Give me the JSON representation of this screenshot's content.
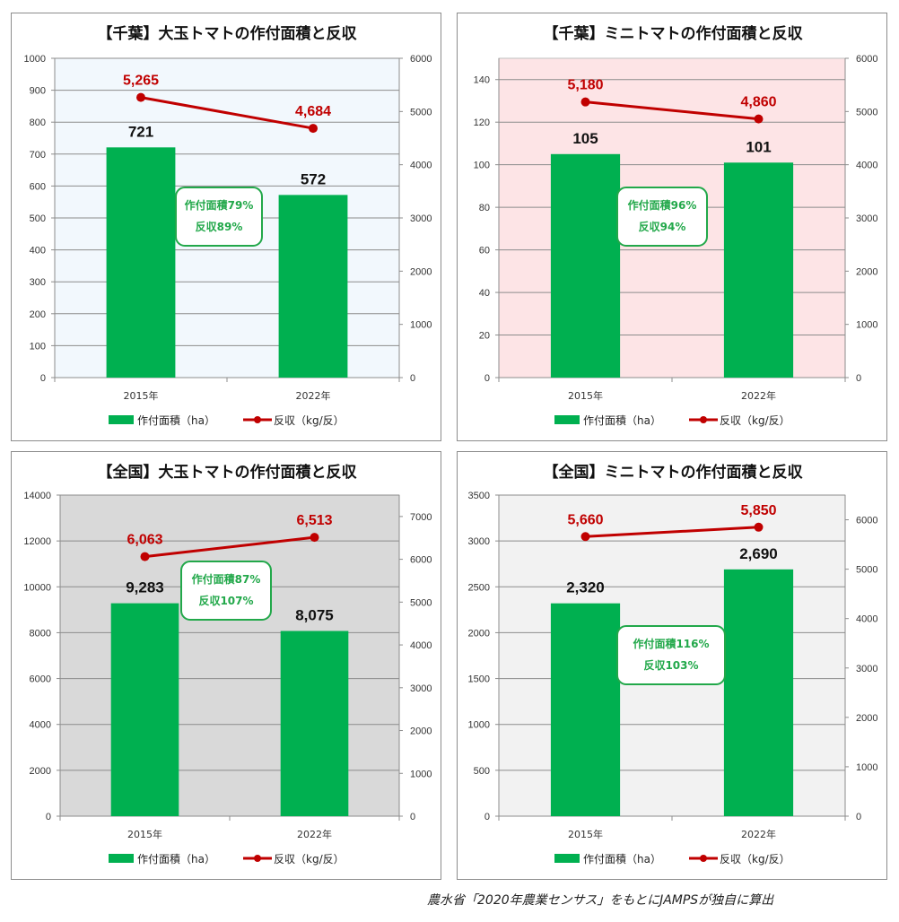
{
  "colors": {
    "bar": "#00b050",
    "line": "#c00000",
    "annotation": "#22a84a"
  },
  "legend": {
    "area_label": "作付面積（ha）",
    "yield_label": "反収（kg/反）"
  },
  "source_note": "農水省「2020年農業センサス」をもとにJAMPSが独自に算出",
  "chart_data": [
    {
      "type": "bar",
      "title": "【千葉】大玉トマトの作付面積と反収",
      "background": "#f2f8fd",
      "categories": [
        "2015年",
        "2022年"
      ],
      "series": [
        {
          "name": "作付面積（ha）",
          "type": "bar",
          "axis": "left",
          "values": [
            721,
            572
          ],
          "labels": [
            "721",
            "572"
          ]
        },
        {
          "name": "反収（kg/反）",
          "type": "line",
          "axis": "right",
          "values": [
            5265,
            4684
          ],
          "labels": [
            "5,265",
            "4,684"
          ]
        }
      ],
      "y_left": {
        "min": 0,
        "max": 1000,
        "step": 100,
        "ticks": [
          "0",
          "100",
          "200",
          "300",
          "400",
          "500",
          "600",
          "700",
          "800",
          "900",
          "1000"
        ]
      },
      "y_right": {
        "min": 0,
        "max": 6000,
        "step": 1000,
        "ticks": [
          "0",
          "1000",
          "2000",
          "3000",
          "4000",
          "5000",
          "6000"
        ]
      },
      "annotation": {
        "lines": [
          "作付面積79%",
          "反収89%"
        ]
      }
    },
    {
      "type": "bar",
      "title": "【千葉】ミニトマトの作付面積と反収",
      "background": "#fde4e6",
      "categories": [
        "2015年",
        "2022年"
      ],
      "series": [
        {
          "name": "作付面積（ha）",
          "type": "bar",
          "axis": "left",
          "values": [
            105,
            101
          ],
          "labels": [
            "105",
            "101"
          ]
        },
        {
          "name": "反収（kg/反）",
          "type": "line",
          "axis": "right",
          "values": [
            5180,
            4860
          ],
          "labels": [
            "5,180",
            "4,860"
          ]
        }
      ],
      "y_left": {
        "min": 0,
        "max": 150,
        "step": 20,
        "ticks": [
          "0",
          "20",
          "40",
          "60",
          "80",
          "100",
          "120",
          "140"
        ]
      },
      "y_right": {
        "min": 0,
        "max": 6000,
        "step": 1000,
        "ticks": [
          "0",
          "1000",
          "2000",
          "3000",
          "4000",
          "5000",
          "6000"
        ]
      },
      "annotation": {
        "lines": [
          "作付面積96%",
          "反収94%"
        ]
      }
    },
    {
      "type": "bar",
      "title": "【全国】大玉トマトの作付面積と反収",
      "background": "#d9d9d9",
      "categories": [
        "2015年",
        "2022年"
      ],
      "series": [
        {
          "name": "作付面積（ha）",
          "type": "bar",
          "axis": "left",
          "values": [
            9283,
            8075
          ],
          "labels": [
            "9,283",
            "8,075"
          ]
        },
        {
          "name": "反収（kg/反）",
          "type": "line",
          "axis": "right",
          "values": [
            6063,
            6513
          ],
          "labels": [
            "6,063",
            "6,513"
          ]
        }
      ],
      "y_left": {
        "min": 0,
        "max": 14000,
        "step": 2000,
        "ticks": [
          "0",
          "2000",
          "4000",
          "6000",
          "8000",
          "10000",
          "12000",
          "14000"
        ]
      },
      "y_right": {
        "min": 0,
        "max": 7500,
        "step": 1000,
        "ticks": [
          "0",
          "1000",
          "2000",
          "3000",
          "4000",
          "5000",
          "6000",
          "7000"
        ]
      },
      "annotation": {
        "lines": [
          "作付面積87%",
          "反収107%"
        ]
      }
    },
    {
      "type": "bar",
      "title": "【全国】ミニトマトの作付面積と反収",
      "background": "#f2f2f2",
      "categories": [
        "2015年",
        "2022年"
      ],
      "series": [
        {
          "name": "作付面積（ha）",
          "type": "bar",
          "axis": "left",
          "values": [
            2320,
            2690
          ],
          "labels": [
            "2,320",
            "2,690"
          ]
        },
        {
          "name": "反収（kg/反）",
          "type": "line",
          "axis": "right",
          "values": [
            5660,
            5850
          ],
          "labels": [
            "5,660",
            "5,850"
          ]
        }
      ],
      "y_left": {
        "min": 0,
        "max": 3500,
        "step": 500,
        "ticks": [
          "0",
          "500",
          "1000",
          "1500",
          "2000",
          "2500",
          "3000",
          "3500"
        ]
      },
      "y_right": {
        "min": 0,
        "max": 6500,
        "step": 1000,
        "ticks": [
          "0",
          "1000",
          "2000",
          "3000",
          "4000",
          "5000",
          "6000"
        ]
      },
      "annotation": {
        "lines": [
          "作付面積116%",
          "反収103%"
        ]
      }
    }
  ]
}
